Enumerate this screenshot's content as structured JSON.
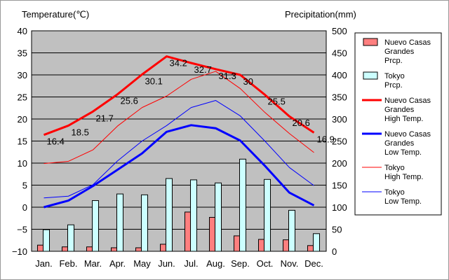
{
  "chart_data": {
    "type": "bar",
    "left_axis_title": "Temperature(℃)",
    "right_axis_title": "Precipitation(mm)",
    "categories": [
      "Jan.",
      "Feb.",
      "Mar.",
      "Apr.",
      "May",
      "Jun.",
      "Jul.",
      "Aug.",
      "Sep.",
      "Oct.",
      "Nov.",
      "Dec."
    ],
    "ylim_left": [
      -10,
      40
    ],
    "yticks_left": [
      "40",
      "35",
      "30",
      "25",
      "20",
      "15",
      "10",
      "5",
      "0",
      "−5",
      "−10"
    ],
    "ylim_right": [
      0,
      500
    ],
    "yticks_right": [
      "500",
      "450",
      "400",
      "350",
      "300",
      "250",
      "200",
      "150",
      "100",
      "50",
      "0"
    ],
    "grid": true,
    "bars": [
      {
        "name": "Nuevo Casas Grandes Prcp.",
        "color": "#ff7f7f",
        "values": [
          14,
          10,
          10,
          8,
          8,
          16,
          89,
          77,
          35,
          27,
          26,
          13
        ]
      },
      {
        "name": "Tokyo Prcp.",
        "color": "#ccffff",
        "values": [
          49,
          60,
          115,
          130,
          128,
          165,
          162,
          155,
          209,
          163,
          93,
          40
        ]
      }
    ],
    "lines": [
      {
        "name": "Nuevo Casas Grandes High Temp.",
        "color": "#ff0000",
        "width": 3,
        "values": [
          16.4,
          18.5,
          21.7,
          25.6,
          30.1,
          34.2,
          32.7,
          31.3,
          30.0,
          25.5,
          20.6,
          16.9
        ]
      },
      {
        "name": "Nuevo Casas Grandes Low Temp.",
        "color": "#0000ff",
        "width": 3,
        "values": [
          0.0,
          1.5,
          4.8,
          8.5,
          12.2,
          17.1,
          18.6,
          17.9,
          15.1,
          9.4,
          3.3,
          0.4
        ]
      },
      {
        "name": "Tokyo High Temp.",
        "color": "#ff0000",
        "width": 1,
        "values": [
          9.9,
          10.4,
          13.0,
          18.4,
          22.6,
          25.2,
          29.0,
          30.8,
          26.9,
          21.5,
          16.7,
          12.4
        ]
      },
      {
        "name": "Tokyo Low Temp.",
        "color": "#0000ff",
        "width": 1,
        "values": [
          2.1,
          2.5,
          5.1,
          10.5,
          15.0,
          18.5,
          22.6,
          24.2,
          20.7,
          15.0,
          9.0,
          4.9
        ]
      }
    ],
    "data_labels": [
      "16.4",
      "18.5",
      "21.7",
      "25.6",
      "30.1",
      "34.2",
      "32.7",
      "31.3",
      "30",
      "25.5",
      "20.6",
      "16.9"
    ],
    "legend": [
      {
        "lines": [
          "Nuevo Casas",
          "Grandes",
          "Prcp."
        ],
        "kind": "bar",
        "color": "#ff7f7f"
      },
      {
        "lines": [
          "Tokyo",
          "Prcp."
        ],
        "kind": "bar",
        "color": "#ccffff"
      },
      {
        "lines": [
          "Nuevo Casas",
          "Grandes",
          "High Temp."
        ],
        "kind": "line",
        "color": "#ff0000",
        "width": 3
      },
      {
        "lines": [
          "Nuevo Casas",
          "Grandes",
          "Low Temp."
        ],
        "kind": "line",
        "color": "#0000ff",
        "width": 3
      },
      {
        "lines": [
          "Tokyo",
          "High Temp."
        ],
        "kind": "line",
        "color": "#ff0000",
        "width": 1
      },
      {
        "lines": [
          "Tokyo",
          "Low Temp."
        ],
        "kind": "line",
        "color": "#0000ff",
        "width": 1
      }
    ],
    "legend_position": "right"
  }
}
